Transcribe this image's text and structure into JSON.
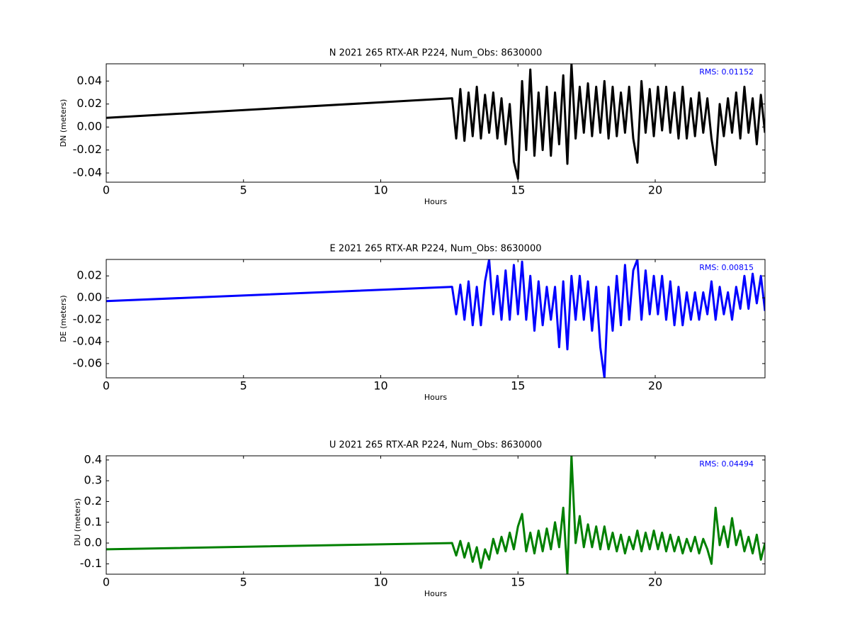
{
  "chart_data": [
    {
      "type": "line",
      "title": "N 2021 265 RTX-AR  P224, Num_Obs: 8630000",
      "xlabel": "Hours",
      "ylabel": "DN (meters)",
      "annotation": "RMS:  0.01152",
      "xlim": [
        0,
        24
      ],
      "xticks": [
        0,
        5,
        10,
        15,
        20
      ],
      "ylim": [
        -0.048,
        0.055
      ],
      "yticks": [
        -0.04,
        -0.02,
        {
          "value": 0,
          "label": "0.00"
        },
        0.02,
        0.04
      ],
      "x": [
        0,
        12.6,
        12.75,
        12.9,
        13.05,
        13.2,
        13.35,
        13.5,
        13.65,
        13.8,
        13.95,
        14.1,
        14.25,
        14.4,
        14.55,
        14.7,
        14.85,
        15,
        15.15,
        15.3,
        15.45,
        15.6,
        15.75,
        15.9,
        16.05,
        16.2,
        16.35,
        16.5,
        16.65,
        16.8,
        16.95,
        17.1,
        17.25,
        17.4,
        17.55,
        17.7,
        17.85,
        18,
        18.15,
        18.3,
        18.45,
        18.6,
        18.75,
        18.9,
        19.05,
        19.2,
        19.35,
        19.5,
        19.65,
        19.8,
        19.95,
        20.1,
        20.25,
        20.4,
        20.55,
        20.7,
        20.85,
        21,
        21.15,
        21.3,
        21.45,
        21.6,
        21.75,
        21.9,
        22.05,
        22.2,
        22.35,
        22.5,
        22.65,
        22.8,
        22.95,
        23.1,
        23.25,
        23.4,
        23.55,
        23.7,
        23.85,
        24
      ],
      "series": [
        {
          "color": "#000000",
          "values": [
            0.008,
            0.025,
            -0.01,
            0.033,
            -0.012,
            0.03,
            -0.008,
            0.035,
            -0.01,
            0.028,
            -0.005,
            0.03,
            -0.01,
            0.025,
            -0.015,
            0.02,
            -0.03,
            -0.045,
            0.04,
            -0.02,
            0.05,
            -0.025,
            0.03,
            -0.02,
            0.035,
            -0.025,
            0.03,
            -0.015,
            0.045,
            -0.032,
            0.055,
            -0.01,
            0.035,
            -0.005,
            0.038,
            -0.008,
            0.035,
            -0.005,
            0.04,
            -0.01,
            0.035,
            -0.008,
            0.03,
            -0.005,
            0.035,
            -0.01,
            -0.031,
            0.04,
            -0.005,
            0.033,
            -0.008,
            0.035,
            -0.003,
            0.035,
            -0.005,
            0.03,
            -0.01,
            0.035,
            -0.01,
            0.025,
            -0.008,
            0.03,
            -0.005,
            0.025,
            -0.01,
            -0.033,
            0.02,
            -0.008,
            0.025,
            -0.005,
            0.03,
            -0.01,
            0.035,
            -0.005,
            0.025,
            -0.015,
            0.028,
            -0.005
          ]
        }
      ]
    },
    {
      "type": "line",
      "title": "E 2021 265 RTX-AR  P224, Num_Obs: 8630000",
      "xlabel": "Hours",
      "ylabel": "DE (meters)",
      "annotation": "RMS:  0.00815",
      "xlim": [
        0,
        24
      ],
      "xticks": [
        0,
        5,
        10,
        15,
        20
      ],
      "ylim": [
        -0.073,
        0.035
      ],
      "yticks": [
        -0.06,
        -0.04,
        -0.02,
        {
          "value": 0,
          "label": "0.00"
        },
        0.02
      ],
      "x": [
        0,
        12.6,
        12.75,
        12.9,
        13.05,
        13.2,
        13.35,
        13.5,
        13.65,
        13.8,
        13.95,
        14.1,
        14.25,
        14.4,
        14.55,
        14.7,
        14.85,
        15,
        15.15,
        15.3,
        15.45,
        15.6,
        15.75,
        15.9,
        16.05,
        16.2,
        16.35,
        16.5,
        16.65,
        16.8,
        16.95,
        17.1,
        17.25,
        17.4,
        17.55,
        17.7,
        17.85,
        18,
        18.15,
        18.3,
        18.45,
        18.6,
        18.75,
        18.9,
        19.05,
        19.2,
        19.35,
        19.5,
        19.65,
        19.8,
        19.95,
        20.1,
        20.25,
        20.4,
        20.55,
        20.7,
        20.85,
        21,
        21.15,
        21.3,
        21.45,
        21.6,
        21.75,
        21.9,
        22.05,
        22.2,
        22.35,
        22.5,
        22.65,
        22.8,
        22.95,
        23.1,
        23.25,
        23.4,
        23.55,
        23.7,
        23.85,
        24
      ],
      "series": [
        {
          "color": "#0000ff",
          "values": [
            -0.003,
            0.01,
            -0.015,
            0.012,
            -0.02,
            0.015,
            -0.025,
            0.01,
            -0.025,
            0.015,
            0.035,
            -0.015,
            0.02,
            -0.02,
            0.025,
            -0.02,
            0.03,
            -0.015,
            0.033,
            -0.02,
            0.02,
            -0.03,
            0.015,
            -0.025,
            0.01,
            -0.02,
            0.01,
            -0.045,
            0.015,
            -0.047,
            0.02,
            -0.02,
            0.02,
            -0.02,
            0.015,
            -0.03,
            0.01,
            -0.045,
            -0.073,
            0.01,
            -0.03,
            0.02,
            -0.025,
            0.03,
            -0.02,
            0.025,
            0.035,
            -0.02,
            0.025,
            -0.015,
            0.02,
            -0.015,
            0.02,
            -0.02,
            0.015,
            -0.025,
            0.01,
            -0.025,
            0.005,
            -0.02,
            0.005,
            -0.02,
            0.005,
            -0.015,
            0.015,
            -0.02,
            0.01,
            -0.015,
            0.005,
            -0.02,
            0.01,
            -0.01,
            0.02,
            -0.01,
            0.022,
            -0.005,
            0.02,
            -0.012
          ]
        }
      ]
    },
    {
      "type": "line",
      "title": "U 2021 265 RTX-AR  P224, Num_Obs: 8630000",
      "xlabel": "Hours",
      "ylabel": "DU (meters)",
      "annotation": "RMS:  0.04494",
      "xlim": [
        0,
        24
      ],
      "xticks": [
        0,
        5,
        10,
        15,
        20
      ],
      "ylim": [
        -0.15,
        0.42
      ],
      "yticks": [
        -0.1,
        {
          "value": 0,
          "label": "0.0"
        },
        0.1,
        0.2,
        0.3,
        0.4
      ],
      "x": [
        0,
        12.6,
        12.75,
        12.9,
        13.05,
        13.2,
        13.35,
        13.5,
        13.65,
        13.8,
        13.95,
        14.1,
        14.25,
        14.4,
        14.55,
        14.7,
        14.85,
        15,
        15.15,
        15.3,
        15.45,
        15.6,
        15.75,
        15.9,
        16.05,
        16.2,
        16.35,
        16.5,
        16.65,
        16.8,
        16.95,
        17.1,
        17.25,
        17.4,
        17.55,
        17.7,
        17.85,
        18,
        18.15,
        18.3,
        18.45,
        18.6,
        18.75,
        18.9,
        19.05,
        19.2,
        19.35,
        19.5,
        19.65,
        19.8,
        19.95,
        20.1,
        20.25,
        20.4,
        20.55,
        20.7,
        20.85,
        21,
        21.15,
        21.3,
        21.45,
        21.6,
        21.75,
        21.9,
        22.05,
        22.2,
        22.35,
        22.5,
        22.65,
        22.8,
        22.95,
        23.1,
        23.25,
        23.4,
        23.55,
        23.7,
        23.85,
        24
      ],
      "series": [
        {
          "color": "#008000",
          "values": [
            -0.03,
            0.0,
            -0.06,
            0.01,
            -0.07,
            0.0,
            -0.09,
            -0.02,
            -0.12,
            -0.03,
            -0.08,
            0.02,
            -0.05,
            0.03,
            -0.04,
            0.05,
            -0.03,
            0.08,
            0.14,
            -0.04,
            0.05,
            -0.05,
            0.06,
            -0.04,
            0.07,
            -0.03,
            0.1,
            -0.02,
            0.17,
            -0.15,
            0.42,
            0.0,
            0.13,
            -0.02,
            0.09,
            -0.02,
            0.08,
            -0.03,
            0.08,
            -0.03,
            0.05,
            -0.04,
            0.04,
            -0.05,
            0.03,
            -0.03,
            0.06,
            -0.04,
            0.05,
            -0.03,
            0.06,
            -0.03,
            0.05,
            -0.04,
            0.04,
            -0.04,
            0.03,
            -0.05,
            0.02,
            -0.04,
            0.03,
            -0.05,
            0.02,
            -0.03,
            -0.1,
            0.17,
            -0.01,
            0.08,
            -0.02,
            0.12,
            -0.01,
            0.06,
            -0.04,
            0.03,
            -0.05,
            0.04,
            -0.08,
            0.0
          ]
        }
      ]
    }
  ]
}
